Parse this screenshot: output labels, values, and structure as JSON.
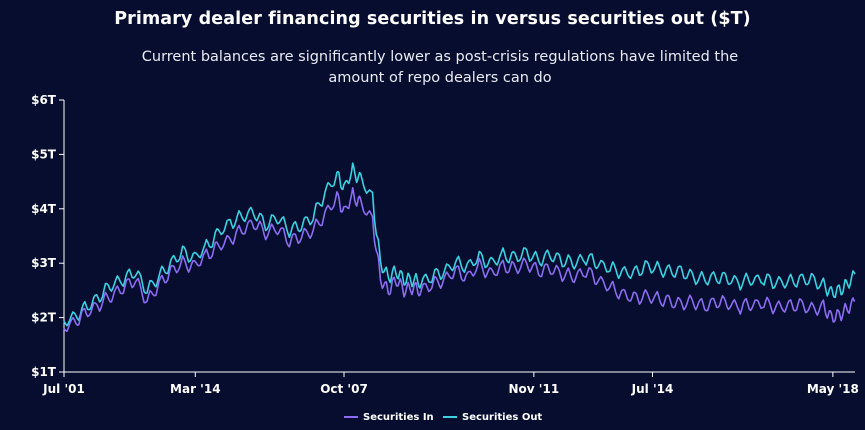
{
  "chart_data": {
    "type": "line",
    "title": "Primary dealer financing securities in versus securities out ($T)",
    "subtitle": "Current balances are significantly lower as post-crisis regulations have limited the amount of repo dealers can do",
    "xlabel": "",
    "ylabel": "",
    "ylim": [
      1,
      6
    ],
    "grid": false,
    "y_ticks": [
      6,
      5,
      4,
      3,
      2,
      1
    ],
    "y_tick_labels": [
      "$6T",
      "$5T",
      "$4T",
      "$3T",
      "$2T",
      "$1T"
    ],
    "x_tick_labels": [
      "Jul '01",
      "Mar '14",
      "Oct '07",
      "Nov '11",
      "Jul '14",
      "May '18"
    ],
    "x_range": [
      0,
      100
    ],
    "x_tick_positions": [
      0,
      16.6,
      35.4,
      59.4,
      74.4,
      97.2
    ],
    "legend_position": "bottom-center",
    "series": [
      {
        "name": "Securities In",
        "color": "#8b6cf2",
        "x": [
          0,
          1.5,
          3,
          4.5,
          6,
          7.5,
          9,
          10.5,
          12,
          13.5,
          15,
          16.5,
          18,
          19.5,
          21,
          22.5,
          24,
          25.5,
          27,
          28.5,
          30,
          31.5,
          33,
          34.5,
          35.5,
          36.5,
          37.5,
          39,
          40,
          41,
          42,
          43,
          44,
          45,
          46.5,
          48,
          49.5,
          51,
          52.5,
          54,
          55.5,
          57,
          58.5,
          60,
          61.5,
          63,
          64.5,
          66,
          67.5,
          69,
          70.5,
          72,
          73.5,
          75,
          76.5,
          78,
          79.5,
          81,
          82.5,
          84,
          85.5,
          87,
          88.5,
          90,
          91.5,
          93,
          94.5,
          96,
          97,
          98,
          99,
          100
        ],
        "y": [
          1.8,
          1.95,
          2.1,
          2.25,
          2.4,
          2.55,
          2.7,
          2.3,
          2.6,
          2.85,
          3.0,
          2.95,
          3.15,
          3.3,
          3.45,
          3.6,
          3.75,
          3.55,
          3.65,
          3.4,
          3.5,
          3.6,
          3.9,
          4.2,
          3.95,
          4.25,
          4.1,
          3.8,
          2.7,
          2.5,
          2.7,
          2.5,
          2.55,
          2.5,
          2.6,
          2.7,
          2.85,
          2.75,
          2.95,
          2.8,
          2.95,
          2.9,
          3.0,
          2.85,
          2.9,
          2.8,
          2.75,
          2.85,
          2.7,
          2.55,
          2.45,
          2.35,
          2.4,
          2.35,
          2.3,
          2.25,
          2.3,
          2.2,
          2.3,
          2.25,
          2.2,
          2.25,
          2.25,
          2.2,
          2.2,
          2.25,
          2.15,
          2.2,
          2.0,
          2.05,
          2.15,
          2.3
        ]
      },
      {
        "name": "Securities Out",
        "color": "#39d3e3",
        "x": [
          0,
          1.5,
          3,
          4.5,
          6,
          7.5,
          9,
          10.5,
          12,
          13.5,
          15,
          16.5,
          18,
          19.5,
          21,
          22.5,
          24,
          25.5,
          27,
          28.5,
          30,
          31.5,
          33,
          34.5,
          35.5,
          36.5,
          37.5,
          39,
          40,
          41,
          42,
          43,
          44,
          45,
          46.5,
          48,
          49.5,
          51,
          52.5,
          54,
          55.5,
          57,
          58.5,
          60,
          61.5,
          63,
          64.5,
          66,
          67.5,
          69,
          70.5,
          72,
          73.5,
          75,
          76.5,
          78,
          79.5,
          81,
          82.5,
          84,
          85.5,
          87,
          88.5,
          90,
          91.5,
          93,
          94.5,
          96,
          97,
          98,
          99,
          100
        ],
        "y": [
          1.9,
          2.05,
          2.2,
          2.4,
          2.6,
          2.7,
          2.85,
          2.5,
          2.75,
          3.0,
          3.2,
          3.1,
          3.3,
          3.55,
          3.75,
          3.85,
          3.95,
          3.7,
          3.85,
          3.6,
          3.7,
          3.85,
          4.3,
          4.6,
          4.4,
          4.7,
          4.55,
          4.2,
          3.0,
          2.75,
          2.85,
          2.7,
          2.7,
          2.65,
          2.75,
          2.85,
          3.0,
          2.95,
          3.1,
          3.0,
          3.15,
          3.1,
          3.2,
          3.05,
          3.15,
          3.05,
          3.0,
          3.1,
          3.0,
          2.9,
          2.85,
          2.8,
          2.95,
          2.9,
          2.85,
          2.85,
          2.75,
          2.7,
          2.75,
          2.7,
          2.65,
          2.7,
          2.7,
          2.65,
          2.65,
          2.7,
          2.7,
          2.6,
          2.45,
          2.5,
          2.6,
          2.8
        ]
      }
    ]
  }
}
